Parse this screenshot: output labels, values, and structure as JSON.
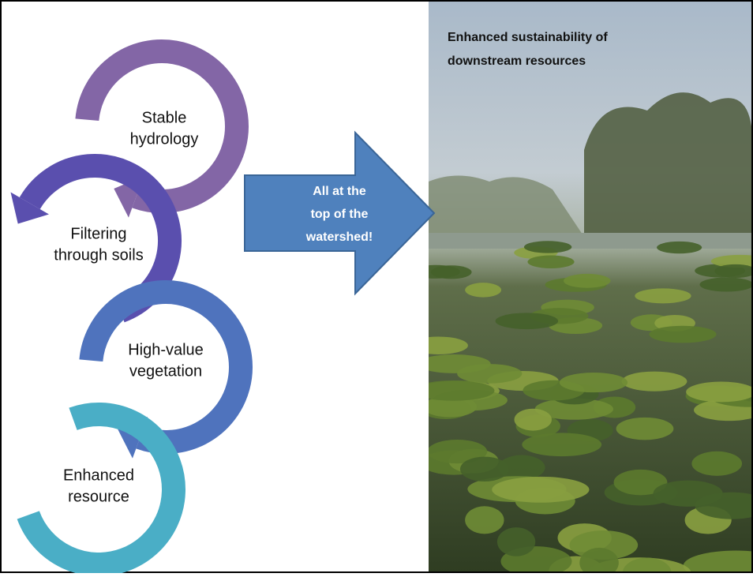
{
  "nodes": [
    {
      "lines": [
        "Stable",
        "hydrology"
      ]
    },
    {
      "lines": [
        "Filtering",
        "through soils"
      ]
    },
    {
      "lines": [
        "High-value",
        "vegetation"
      ]
    },
    {
      "lines": [
        "Enhanced",
        "resource"
      ]
    }
  ],
  "arrow": {
    "lines": [
      "All at the",
      "top of the",
      "watershed!"
    ]
  },
  "photo": {
    "caption": [
      "Enhanced  sustainability of",
      "downstream resources"
    ]
  }
}
